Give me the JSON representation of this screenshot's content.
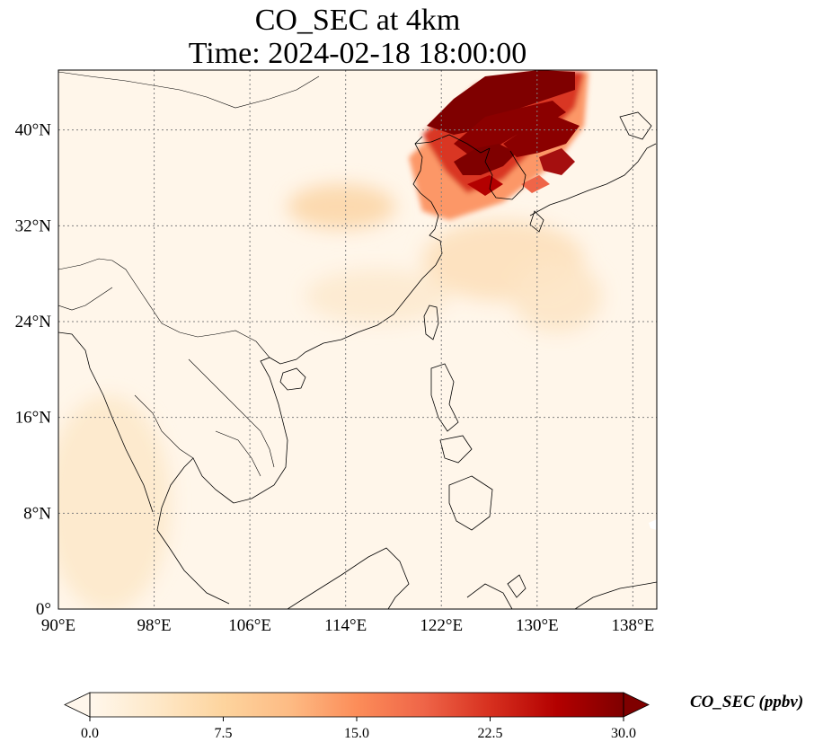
{
  "title": {
    "line1": "CO_SEC at 4km",
    "line2": "Time: 2024-02-18 18:00:00"
  },
  "map": {
    "variable": "CO_SEC",
    "height": "4km",
    "time": "2024-02-18 18:00:00",
    "extent": {
      "lon": [
        90,
        140
      ],
      "lat": [
        0,
        45
      ]
    },
    "gridlines": true,
    "gridline_color": "#808080",
    "coastline_color": "#000000",
    "lon_ticks": [
      {
        "value": 90,
        "label": "90°E"
      },
      {
        "value": 98,
        "label": "98°E"
      },
      {
        "value": 106,
        "label": "106°E"
      },
      {
        "value": 114,
        "label": "114°E"
      },
      {
        "value": 122,
        "label": "122°E"
      },
      {
        "value": 130,
        "label": "130°E"
      },
      {
        "value": 138,
        "label": "138°E"
      }
    ],
    "lat_ticks": [
      {
        "value": 0,
        "label": "0°"
      },
      {
        "value": 8,
        "label": "8°N"
      },
      {
        "value": 16,
        "label": "16°N"
      },
      {
        "value": 24,
        "label": "24°N"
      },
      {
        "value": 32,
        "label": "32°N"
      },
      {
        "value": 40,
        "label": "40°N"
      }
    ]
  },
  "colorbar": {
    "label": "CO_SEC (ppbv)",
    "colormap": "OrRd",
    "colors": [
      "#fff7ec",
      "#fee8c8",
      "#fdd49e",
      "#fdbb84",
      "#fc8d59",
      "#ef6548",
      "#d7301f",
      "#b30000",
      "#7f0000"
    ],
    "min": 0.0,
    "max": 30.0,
    "extend": "both",
    "ticks": [
      {
        "value": 0.0,
        "label": "0.0"
      },
      {
        "value": 7.5,
        "label": "7.5"
      },
      {
        "value": 15.0,
        "label": "15.0"
      },
      {
        "value": 22.5,
        "label": "22.5"
      },
      {
        "value": 30.0,
        "label": "30.0"
      }
    ]
  }
}
